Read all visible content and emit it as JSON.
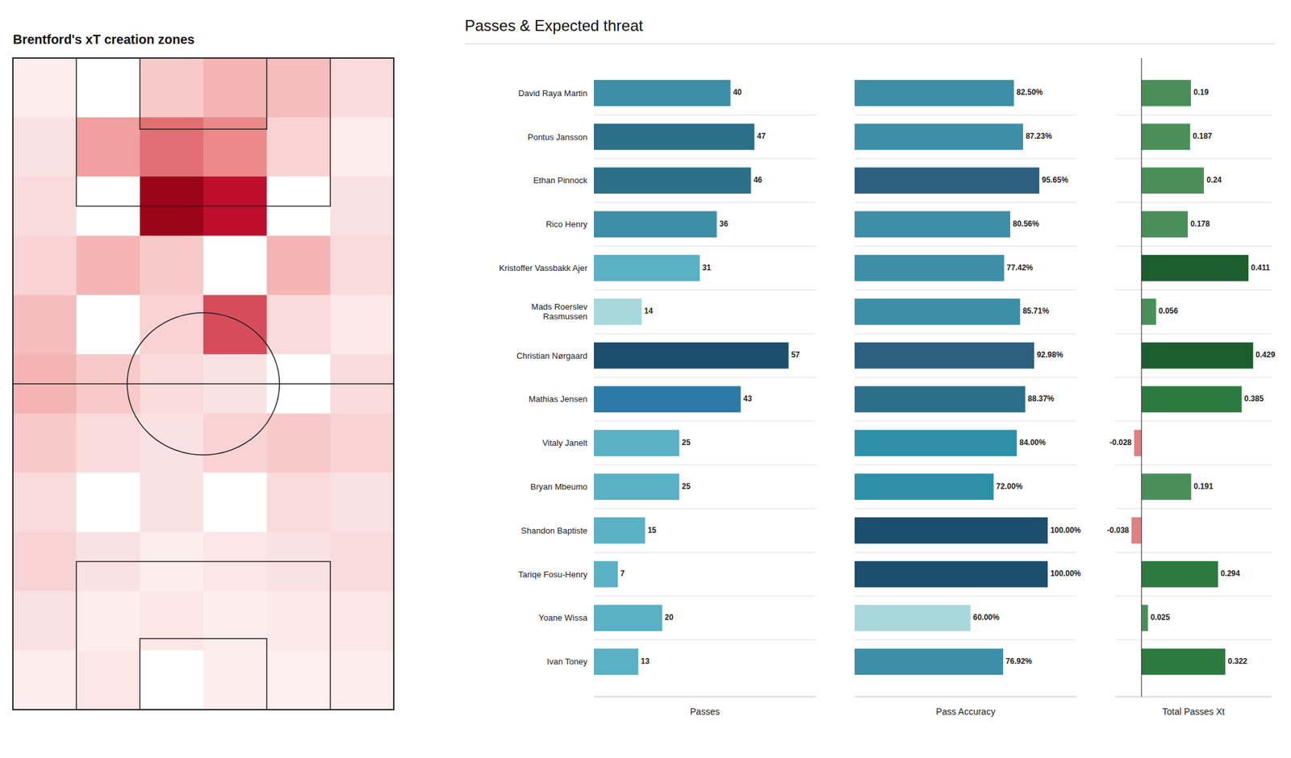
{
  "chart_data": [
    {
      "type": "heatmap",
      "title": "Brentford's xT creation zones",
      "cells": [
        [
          0.05,
          0.0,
          0.15,
          0.2,
          0.18,
          0.1
        ],
        [
          0.08,
          0.25,
          0.35,
          0.3,
          0.12,
          0.05
        ],
        [
          0.1,
          0.0,
          0.6,
          0.5,
          0.0,
          0.08
        ],
        [
          0.12,
          0.2,
          0.15,
          0.0,
          0.2,
          0.1
        ],
        [
          0.18,
          0.0,
          0.12,
          0.4,
          0.1,
          0.06
        ],
        [
          0.2,
          0.15,
          0.1,
          0.08,
          0.0,
          0.1
        ],
        [
          0.15,
          0.1,
          0.08,
          0.12,
          0.15,
          0.12
        ],
        [
          0.1,
          0.0,
          0.08,
          0.0,
          0.1,
          0.08
        ],
        [
          0.12,
          0.08,
          0.05,
          0.07,
          0.08,
          0.1
        ],
        [
          0.08,
          0.05,
          0.07,
          0.05,
          0.06,
          0.07
        ],
        [
          0.05,
          0.07,
          0.0,
          0.05,
          0.04,
          0.05
        ]
      ],
      "color_range": [
        0,
        0.65
      ],
      "tick_labels": false
    },
    {
      "type": "bar",
      "title": "Passes & Expected threat",
      "orientation": "horizontal",
      "categories": [
        "David Raya Martin",
        "Pontus Jansson",
        "Ethan Pinnock",
        "Rico Henry",
        "Kristoffer Vassbakk Ajer",
        "Mads Roerslev\nRasmussen",
        "Christian Nørgaard",
        "Mathias Jensen",
        "Vitaly Janelt",
        "Bryan Mbeumo",
        "Shandon Baptiste",
        "Tariqe Fosu-Henry",
        "Yoane Wissa",
        "Ivan Toney"
      ],
      "values": [
        40,
        47,
        46,
        36,
        31,
        14,
        57,
        43,
        25,
        25,
        15,
        7,
        20,
        13
      ],
      "colors": [
        "#3d8fa8",
        "#2d6f8a",
        "#2d6f8a",
        "#3d8fa8",
        "#5ab0c4",
        "#a8d8dc",
        "#1d4e6e",
        "#2d7aa8",
        "#5ab0c4",
        "#5ab0c4",
        "#5ab0c4",
        "#5ab0c4",
        "#5ab0c4",
        "#5ab0c4"
      ],
      "xlabel": "Passes",
      "xlim": [
        0,
        65
      ],
      "data_labels": true,
      "tick_labels": "y",
      "grid": true
    },
    {
      "type": "bar",
      "orientation": "horizontal",
      "categories": [
        "David Raya Martin",
        "Pontus Jansson",
        "Ethan Pinnock",
        "Rico Henry",
        "Kristoffer Vassbakk Ajer",
        "Mads Roerslev\nRasmussen",
        "Christian Nørgaard",
        "Mathias Jensen",
        "Vitaly Janelt",
        "Bryan Mbeumo",
        "Shandon Baptiste",
        "Tariqe Fosu-Henry",
        "Yoane Wissa",
        "Ivan Toney"
      ],
      "values": [
        82.5,
        87.23,
        95.65,
        80.56,
        77.42,
        85.71,
        92.98,
        88.37,
        84.0,
        72.0,
        100.0,
        100.0,
        60.0,
        76.92
      ],
      "value_labels": [
        "82.50%",
        "87.23%",
        "95.65%",
        "80.56%",
        "77.42%",
        "85.71%",
        "92.98%",
        "88.37%",
        "84.00%",
        "72.00%",
        "100.00%",
        "100.00%",
        "60.00%",
        "76.92%"
      ],
      "colors": [
        "#3d8fa8",
        "#3d8fa8",
        "#2d6080",
        "#3d8fa8",
        "#3d8fa8",
        "#3d8fa8",
        "#2d6080",
        "#2d6f8a",
        "#2d8fa8",
        "#2d8fa8",
        "#1d4e6e",
        "#1d4e6e",
        "#a8d8dc",
        "#3d8fa8"
      ],
      "xlabel": "Pass Accuracy",
      "xlim": [
        0,
        115
      ],
      "data_labels": true,
      "tick_labels": false,
      "grid": true
    },
    {
      "type": "bar",
      "orientation": "horizontal",
      "categories": [
        "David Raya Martin",
        "Pontus Jansson",
        "Ethan Pinnock",
        "Rico Henry",
        "Kristoffer Vassbakk Ajer",
        "Mads Roerslev\nRasmussen",
        "Christian Nørgaard",
        "Mathias Jensen",
        "Vitaly Janelt",
        "Bryan Mbeumo",
        "Shandon Baptiste",
        "Tariqe Fosu-Henry",
        "Yoane Wissa",
        "Ivan Toney"
      ],
      "values": [
        0.19,
        0.187,
        0.24,
        0.178,
        0.411,
        0.056,
        0.429,
        0.385,
        -0.028,
        0.191,
        -0.038,
        0.294,
        0.025,
        0.322
      ],
      "colors": [
        "#4a8f5a",
        "#4a8f5a",
        "#4a8f5a",
        "#4a8f5a",
        "#1d5e2e",
        "#4a8f5a",
        "#1d5e2e",
        "#2d7a40",
        "#e08080",
        "#4a8f5a",
        "#e08080",
        "#2d7a40",
        "#4a8f5a",
        "#2d7a40"
      ],
      "xlabel": "Total Passes Xt",
      "xlim": [
        -0.1,
        0.5
      ],
      "data_labels": true,
      "tick_labels": false,
      "grid": true
    }
  ]
}
